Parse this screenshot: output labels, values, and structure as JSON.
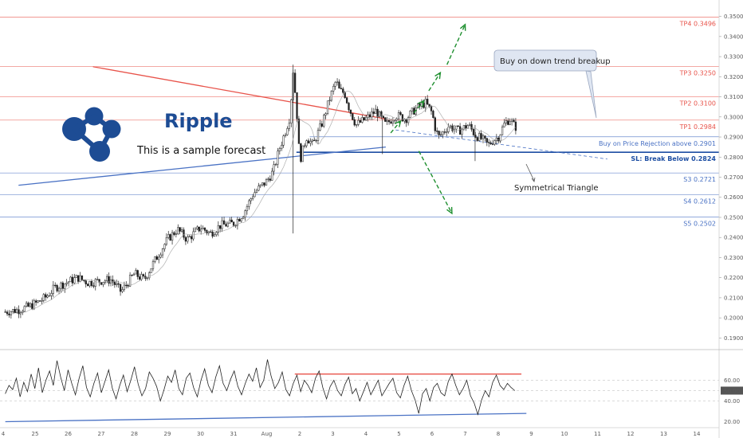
{
  "brand": {
    "name": "Ripple",
    "tagline": "This is a sample forecast"
  },
  "annotations": {
    "callout": "Buy on down trend breakup",
    "triangle": "Symmetrical Triangle"
  },
  "colors": {
    "resistance": "#e8534a",
    "support": "#4a72c4",
    "support_strong": "#1d4ea3",
    "arrow": "#1e8f2f",
    "candle": "#222222",
    "brand": "#1d4c94",
    "callout_bg": "#dfe6f2"
  },
  "icons": {
    "logo": "ripple-logo-icon"
  },
  "chart_data": [
    {
      "type": "candlestick",
      "title": "",
      "ylim": [
        0.185,
        0.355
      ],
      "y_ticks": [
        "0.35000",
        "0.34000",
        "0.33000",
        "0.32000",
        "0.31000",
        "0.30000",
        "0.29000",
        "0.28000",
        "0.27000",
        "0.26000",
        "0.25000",
        "0.24000",
        "0.23000",
        "0.22000",
        "0.21000",
        "0.20000",
        "0.19000"
      ],
      "x_ticks": [
        "4",
        "25",
        "26",
        "27",
        "28",
        "29",
        "30",
        "31",
        "Aug",
        "2",
        "3",
        "4",
        "5",
        "6",
        "7",
        "8",
        "9",
        "10",
        "11",
        "12",
        "13",
        "14"
      ],
      "grid": false,
      "levels": [
        {
          "label": "TP4 0.3496",
          "value": 0.3496,
          "kind": "resistance"
        },
        {
          "label": "TP3 0.3250",
          "value": 0.325,
          "kind": "resistance"
        },
        {
          "label": "TP2 0.3100",
          "value": 0.31,
          "kind": "resistance"
        },
        {
          "label": "TP1 0.2984",
          "value": 0.2984,
          "kind": "resistance"
        },
        {
          "label": "Buy on Price Rejection above 0.2901",
          "value": 0.2901,
          "kind": "support"
        },
        {
          "label": "SL: Break Below 0.2824",
          "value": 0.2824,
          "kind": "support_strong"
        },
        {
          "label": "S3 0.2721",
          "value": 0.2721,
          "kind": "support"
        },
        {
          "label": "S4 0.2612",
          "value": 0.2612,
          "kind": "support"
        },
        {
          "label": "S5 0.2502",
          "value": 0.2502,
          "kind": "support"
        }
      ],
      "trendlines": [
        {
          "name": "triangle-top",
          "from": {
            "x": 1.75,
            "y": 0.325
          },
          "to": {
            "x": 10.6,
            "y": 0.299
          },
          "kind": "resistance"
        },
        {
          "name": "triangle-bottom",
          "from": {
            "x": -0.5,
            "y": 0.266
          },
          "to": {
            "x": 10.6,
            "y": 0.285
          },
          "kind": "support"
        }
      ],
      "forecast_arrows": [
        {
          "from": {
            "x": 10.75,
            "y": 0.292
          },
          "to": {
            "x": 11.05,
            "y": 0.298
          }
        },
        {
          "from": {
            "x": 11.45,
            "y": 0.302
          },
          "to": {
            "x": 11.75,
            "y": 0.308
          }
        },
        {
          "from": {
            "x": 11.9,
            "y": 0.313
          },
          "to": {
            "x": 12.25,
            "y": 0.322
          }
        },
        {
          "from": {
            "x": 12.45,
            "y": 0.326
          },
          "to": {
            "x": 13.0,
            "y": 0.346
          }
        },
        {
          "from": {
            "x": 11.6,
            "y": 0.283
          },
          "to": {
            "x": 12.6,
            "y": 0.252
          }
        }
      ],
      "price_path": [
        [
          -0.9,
          0.203
        ],
        [
          -0.5,
          0.204
        ],
        [
          -0.2,
          0.2055
        ],
        [
          0.0,
          0.207
        ],
        [
          0.3,
          0.21
        ],
        [
          0.6,
          0.215
        ],
        [
          1.0,
          0.218
        ],
        [
          1.3,
          0.22
        ],
        [
          1.6,
          0.2175
        ],
        [
          2.0,
          0.2185
        ],
        [
          2.3,
          0.219
        ],
        [
          2.6,
          0.213
        ],
        [
          3.0,
          0.222
        ],
        [
          3.3,
          0.219
        ],
        [
          3.6,
          0.228
        ],
        [
          4.0,
          0.239
        ],
        [
          4.3,
          0.244
        ],
        [
          4.6,
          0.239
        ],
        [
          5.0,
          0.245
        ],
        [
          5.3,
          0.242
        ],
        [
          5.6,
          0.246
        ],
        [
          6.0,
          0.247
        ],
        [
          6.3,
          0.252
        ],
        [
          6.6,
          0.262
        ],
        [
          7.0,
          0.268
        ],
        [
          7.2,
          0.273
        ],
        [
          7.4,
          0.285
        ],
        [
          7.55,
          0.292
        ],
        [
          7.7,
          0.3
        ],
        [
          7.8,
          0.323
        ],
        [
          7.9,
          0.305
        ],
        [
          8.0,
          0.278
        ],
        [
          8.2,
          0.29
        ],
        [
          8.4,
          0.286
        ],
        [
          8.7,
          0.298
        ],
        [
          8.9,
          0.309
        ],
        [
          9.1,
          0.318
        ],
        [
          9.2,
          0.313
        ],
        [
          9.35,
          0.312
        ],
        [
          9.5,
          0.304
        ],
        [
          9.7,
          0.296
        ],
        [
          10.0,
          0.299
        ],
        [
          10.3,
          0.303
        ],
        [
          10.6,
          0.296
        ],
        [
          10.9,
          0.301
        ],
        [
          11.2,
          0.299
        ],
        [
          11.5,
          0.304
        ],
        [
          11.8,
          0.307
        ],
        [
          12.0,
          0.302
        ],
        [
          12.1,
          0.294
        ],
        [
          12.2,
          0.29
        ],
        [
          12.5,
          0.2955
        ],
        [
          12.8,
          0.293
        ],
        [
          13.1,
          0.296
        ],
        [
          13.3,
          0.291
        ],
        [
          13.5,
          0.289
        ],
        [
          13.7,
          0.286
        ],
        [
          13.85,
          0.2885
        ],
        [
          14.0,
          0.29
        ],
        [
          14.2,
          0.297
        ],
        [
          14.35,
          0.299
        ],
        [
          14.5,
          0.295
        ]
      ]
    },
    {
      "type": "line",
      "title": "",
      "ylim": [
        15,
        85
      ],
      "y_ticks": [
        "60.00",
        "40.00",
        "20.00"
      ],
      "current_value_label": "50.00",
      "levels": [
        {
          "value": 66,
          "kind": "resistance",
          "from_x": 7.85,
          "to_x": 14.7
        },
        {
          "value": 60,
          "kind": "dashed"
        },
        {
          "value": 50,
          "kind": "dashed"
        },
        {
          "value": 40,
          "kind": "dashed"
        }
      ],
      "trendline": {
        "from": {
          "x": -0.9,
          "y": 20
        },
        "to": {
          "x": 14.85,
          "y": 28
        },
        "kind": "support"
      },
      "series": [
        {
          "values": [
            47,
            55,
            51,
            62,
            44,
            58,
            49,
            66,
            52,
            72,
            48,
            60,
            69,
            55,
            79,
            63,
            50,
            70,
            57,
            46,
            62,
            74,
            53,
            44,
            57,
            67,
            48,
            59,
            70,
            52,
            42,
            55,
            65,
            49,
            60,
            73,
            56,
            45,
            52,
            68,
            62,
            54,
            40,
            51,
            64,
            58,
            70,
            52,
            46,
            62,
            67,
            53,
            44,
            60,
            71,
            55,
            48,
            63,
            74,
            57,
            50,
            61,
            69,
            54,
            46,
            57,
            66,
            59,
            72,
            53,
            60,
            80,
            64,
            52,
            58,
            68,
            51,
            45,
            57,
            65,
            49,
            60,
            55,
            48,
            62,
            69,
            53,
            42,
            54,
            60,
            50,
            45,
            56,
            63,
            47,
            52,
            40,
            49,
            58,
            46,
            53,
            60,
            45,
            51,
            57,
            62,
            48,
            43,
            55,
            64,
            50,
            41,
            28,
            47,
            52,
            40,
            53,
            57,
            48,
            45,
            59,
            66,
            55,
            46,
            52,
            60,
            45,
            38,
            27,
            41,
            50,
            44,
            58,
            65,
            55,
            51,
            57,
            53,
            50
          ]
        }
      ]
    }
  ]
}
